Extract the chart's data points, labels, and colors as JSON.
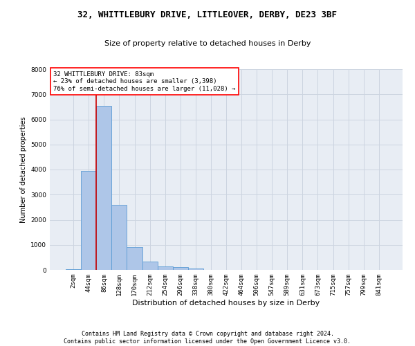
{
  "title1": "32, WHITTLEBURY DRIVE, LITTLEOVER, DERBY, DE23 3BF",
  "title2": "Size of property relative to detached houses in Derby",
  "xlabel": "Distribution of detached houses by size in Derby",
  "ylabel": "Number of detached properties",
  "footnote": "Contains HM Land Registry data © Crown copyright and database right 2024.\nContains public sector information licensed under the Open Government Licence v3.0.",
  "categories": [
    "2sqm",
    "44sqm",
    "86sqm",
    "128sqm",
    "170sqm",
    "212sqm",
    "254sqm",
    "296sqm",
    "338sqm",
    "380sqm",
    "422sqm",
    "464sqm",
    "506sqm",
    "547sqm",
    "589sqm",
    "631sqm",
    "673sqm",
    "715sqm",
    "757sqm",
    "799sqm",
    "841sqm"
  ],
  "bar_values": [
    30,
    3950,
    6550,
    2600,
    900,
    340,
    130,
    100,
    55,
    0,
    0,
    0,
    0,
    0,
    0,
    0,
    0,
    0,
    0,
    0,
    0
  ],
  "bar_color": "#aec6e8",
  "bar_edge_color": "#5b9bd5",
  "property_line_x": 1.5,
  "annotation_text": "32 WHITTLEBURY DRIVE: 83sqm\n← 23% of detached houses are smaller (3,398)\n76% of semi-detached houses are larger (11,028) →",
  "annotation_box_color": "white",
  "annotation_edge_color": "red",
  "red_line_color": "#cc0000",
  "ylim": [
    0,
    8000
  ],
  "yticks": [
    0,
    1000,
    2000,
    3000,
    4000,
    5000,
    6000,
    7000,
    8000
  ],
  "grid_color": "#ccd4e0",
  "bg_color": "#e8edf4",
  "title1_fontsize": 9,
  "title2_fontsize": 8,
  "xlabel_fontsize": 8,
  "ylabel_fontsize": 7,
  "tick_fontsize": 6.5,
  "annot_fontsize": 6.5,
  "footnote_fontsize": 6
}
